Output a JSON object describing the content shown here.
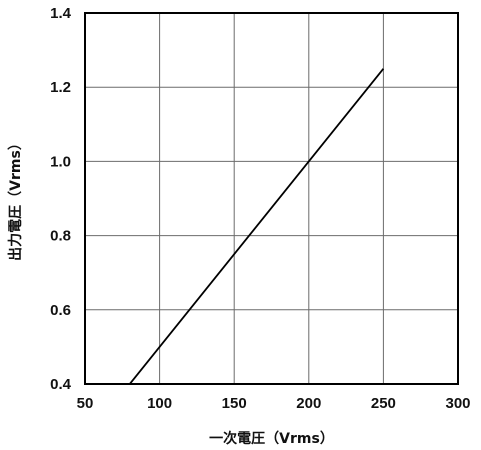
{
  "chart_data": {
    "type": "line",
    "xlabel": "一次電圧（Vrms）",
    "ylabel": "出力電圧（Vrms）",
    "xlim": [
      50,
      300
    ],
    "ylim": [
      0.4,
      1.4
    ],
    "xticks": [
      "50",
      "100",
      "150",
      "200",
      "250",
      "300"
    ],
    "yticks": [
      "0.4",
      "0.6",
      "0.8",
      "1.0",
      "1.2",
      "1.4"
    ],
    "grid": true,
    "series": [
      {
        "x": [
          80,
          250
        ],
        "y": [
          0.4,
          1.25
        ]
      }
    ]
  }
}
